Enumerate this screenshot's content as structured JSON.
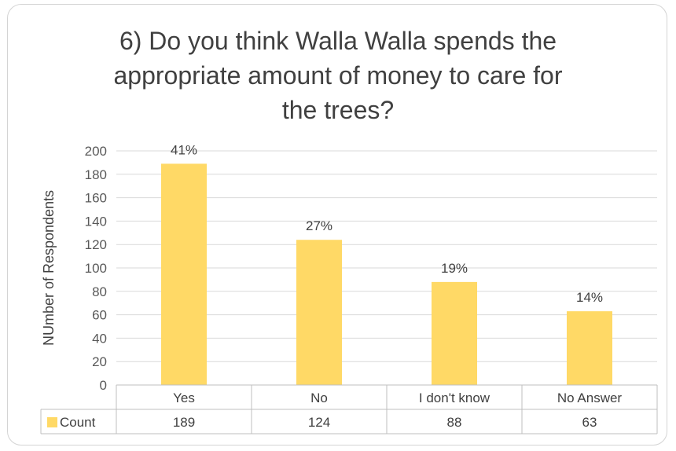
{
  "chart_data": {
    "type": "bar",
    "title": "6) Do you think Walla Walla spends the appropriate amount of money to care for the trees?",
    "title_lines": [
      "6) Do you think Walla Walla spends the",
      "appropriate amount of money to care for",
      "the trees?"
    ],
    "ylabel": "NUmber  of Respondents",
    "xlabel": "",
    "categories": [
      "Yes",
      "No",
      "I don't know",
      "No Answer"
    ],
    "series": [
      {
        "name": "Count",
        "values": [
          189,
          124,
          88,
          63
        ],
        "data_labels": [
          "41%",
          "27%",
          "19%",
          "14%"
        ],
        "color": "#ffd966"
      }
    ],
    "ylim": [
      0,
      200
    ],
    "yticks": [
      0,
      20,
      40,
      60,
      80,
      100,
      120,
      140,
      160,
      180,
      200
    ],
    "grid": true,
    "data_table": true,
    "legend": "data-table"
  }
}
